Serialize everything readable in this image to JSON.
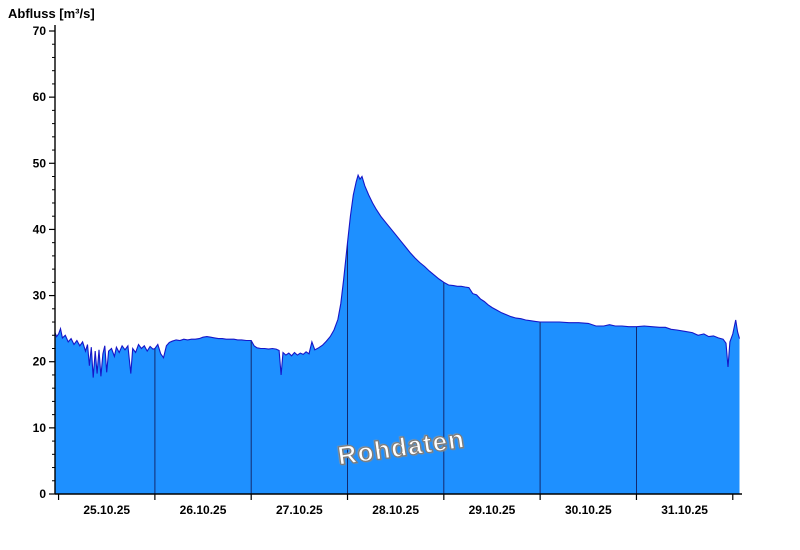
{
  "chart_data": {
    "type": "area",
    "title": "Abfluss [m³/s]",
    "ylabel": "Abfluss [m³/s]",
    "xlabel": "",
    "watermark": "Rohdaten",
    "ylim": [
      0,
      70
    ],
    "y_major_ticks": [
      0,
      10,
      20,
      30,
      40,
      50,
      60,
      70
    ],
    "y_minor_step": 2,
    "x_range_days": [
      -0.037,
      7.075
    ],
    "day_boundaries": [
      0,
      1,
      2,
      3,
      4,
      5,
      6,
      7
    ],
    "gridline_days": [
      1,
      2,
      3,
      4,
      5,
      6
    ],
    "day_labels": [
      "25.10.25",
      "26.10.25",
      "27.10.25",
      "28.10.25",
      "29.10.25",
      "30.10.25",
      "31.10.25"
    ],
    "day_label_centers": [
      0.5,
      1.5,
      2.5,
      3.5,
      4.5,
      5.5,
      6.5
    ],
    "legend_position": "none",
    "grid": "vertical-day-lines-clipped-to-area",
    "colors": {
      "fill": "#1E90FF",
      "line": "#1616C8",
      "grid": "#10104a",
      "axis": "#000000",
      "text": "#000000",
      "watermark_fill": "#ffffff",
      "watermark_outline": "#7d7d7d",
      "background": "#ffffff"
    },
    "series": [
      {
        "name": "Rohdaten",
        "unit": "m³/s",
        "points": [
          [
            -0.037,
            24.4
          ],
          [
            -0.02,
            23.8
          ],
          [
            0,
            24.2
          ],
          [
            0.02,
            25.0
          ],
          [
            0.04,
            23.6
          ],
          [
            0.07,
            24.0
          ],
          [
            0.1,
            23.0
          ],
          [
            0.13,
            23.5
          ],
          [
            0.16,
            22.6
          ],
          [
            0.19,
            23.2
          ],
          [
            0.22,
            22.4
          ],
          [
            0.25,
            23.0
          ],
          [
            0.28,
            21.6
          ],
          [
            0.3,
            22.6
          ],
          [
            0.32,
            19.4
          ],
          [
            0.34,
            22.2
          ],
          [
            0.36,
            17.6
          ],
          [
            0.38,
            21.6
          ],
          [
            0.4,
            18.2
          ],
          [
            0.42,
            21.8
          ],
          [
            0.44,
            17.8
          ],
          [
            0.46,
            21.2
          ],
          [
            0.48,
            22.4
          ],
          [
            0.5,
            18.4
          ],
          [
            0.52,
            21.6
          ],
          [
            0.55,
            22.0
          ],
          [
            0.58,
            20.8
          ],
          [
            0.6,
            22.2
          ],
          [
            0.63,
            21.4
          ],
          [
            0.66,
            22.4
          ],
          [
            0.69,
            21.8
          ],
          [
            0.72,
            22.4
          ],
          [
            0.75,
            18.2
          ],
          [
            0.77,
            22.0
          ],
          [
            0.8,
            21.4
          ],
          [
            0.83,
            22.6
          ],
          [
            0.86,
            22.0
          ],
          [
            0.89,
            22.4
          ],
          [
            0.92,
            21.6
          ],
          [
            0.95,
            22.3
          ],
          [
            0.98,
            21.9
          ],
          [
            1.0,
            22.0
          ],
          [
            1.03,
            22.6
          ],
          [
            1.06,
            21.2
          ],
          [
            1.09,
            20.6
          ],
          [
            1.12,
            22.4
          ],
          [
            1.15,
            22.9
          ],
          [
            1.18,
            23.1
          ],
          [
            1.22,
            23.3
          ],
          [
            1.26,
            23.2
          ],
          [
            1.3,
            23.4
          ],
          [
            1.34,
            23.3
          ],
          [
            1.38,
            23.4
          ],
          [
            1.42,
            23.4
          ],
          [
            1.46,
            23.5
          ],
          [
            1.5,
            23.7
          ],
          [
            1.54,
            23.8
          ],
          [
            1.58,
            23.7
          ],
          [
            1.62,
            23.6
          ],
          [
            1.66,
            23.5
          ],
          [
            1.7,
            23.5
          ],
          [
            1.74,
            23.4
          ],
          [
            1.78,
            23.4
          ],
          [
            1.82,
            23.4
          ],
          [
            1.86,
            23.3
          ],
          [
            1.9,
            23.3
          ],
          [
            1.95,
            23.2
          ],
          [
            2.0,
            23.2
          ],
          [
            2.03,
            22.4
          ],
          [
            2.06,
            22.1
          ],
          [
            2.1,
            22.0
          ],
          [
            2.14,
            22.0
          ],
          [
            2.18,
            21.9
          ],
          [
            2.22,
            22.0
          ],
          [
            2.26,
            21.9
          ],
          [
            2.29,
            21.7
          ],
          [
            2.31,
            18.0
          ],
          [
            2.33,
            21.4
          ],
          [
            2.36,
            21.0
          ],
          [
            2.39,
            21.3
          ],
          [
            2.42,
            20.9
          ],
          [
            2.45,
            21.4
          ],
          [
            2.48,
            21.0
          ],
          [
            2.51,
            21.3
          ],
          [
            2.54,
            21.1
          ],
          [
            2.57,
            21.5
          ],
          [
            2.6,
            21.2
          ],
          [
            2.63,
            23.0
          ],
          [
            2.66,
            21.8
          ],
          [
            2.7,
            22.1
          ],
          [
            2.74,
            22.5
          ],
          [
            2.78,
            23.1
          ],
          [
            2.82,
            23.8
          ],
          [
            2.86,
            24.8
          ],
          [
            2.9,
            26.4
          ],
          [
            2.93,
            28.8
          ],
          [
            2.96,
            32.5
          ],
          [
            3.0,
            38.0
          ],
          [
            3.03,
            42.0
          ],
          [
            3.06,
            45.2
          ],
          [
            3.09,
            47.2
          ],
          [
            3.11,
            48.2
          ],
          [
            3.13,
            47.6
          ],
          [
            3.15,
            48.0
          ],
          [
            3.18,
            46.6
          ],
          [
            3.22,
            45.2
          ],
          [
            3.26,
            44.0
          ],
          [
            3.3,
            43.0
          ],
          [
            3.35,
            41.9
          ],
          [
            3.4,
            41.0
          ],
          [
            3.45,
            40.1
          ],
          [
            3.5,
            39.2
          ],
          [
            3.55,
            38.3
          ],
          [
            3.6,
            37.4
          ],
          [
            3.65,
            36.5
          ],
          [
            3.7,
            35.7
          ],
          [
            3.75,
            35.0
          ],
          [
            3.8,
            34.4
          ],
          [
            3.85,
            33.7
          ],
          [
            3.9,
            33.1
          ],
          [
            3.95,
            32.5
          ],
          [
            4.0,
            32.0
          ],
          [
            4.05,
            31.6
          ],
          [
            4.1,
            31.5
          ],
          [
            4.14,
            31.4
          ],
          [
            4.18,
            31.4
          ],
          [
            4.22,
            31.3
          ],
          [
            4.26,
            31.2
          ],
          [
            4.3,
            30.3
          ],
          [
            4.34,
            30.1
          ],
          [
            4.38,
            29.5
          ],
          [
            4.42,
            29.1
          ],
          [
            4.46,
            28.6
          ],
          [
            4.5,
            28.2
          ],
          [
            4.55,
            27.8
          ],
          [
            4.6,
            27.4
          ],
          [
            4.65,
            27.1
          ],
          [
            4.7,
            26.8
          ],
          [
            4.75,
            26.6
          ],
          [
            4.8,
            26.5
          ],
          [
            4.85,
            26.3
          ],
          [
            4.9,
            26.2
          ],
          [
            4.95,
            26.1
          ],
          [
            5.0,
            26.0
          ],
          [
            5.1,
            26.0
          ],
          [
            5.2,
            26.0
          ],
          [
            5.3,
            25.9
          ],
          [
            5.4,
            25.9
          ],
          [
            5.5,
            25.8
          ],
          [
            5.58,
            25.4
          ],
          [
            5.66,
            25.4
          ],
          [
            5.72,
            25.6
          ],
          [
            5.78,
            25.4
          ],
          [
            5.85,
            25.4
          ],
          [
            5.92,
            25.3
          ],
          [
            6.0,
            25.3
          ],
          [
            6.08,
            25.4
          ],
          [
            6.16,
            25.3
          ],
          [
            6.24,
            25.2
          ],
          [
            6.3,
            25.2
          ],
          [
            6.36,
            24.9
          ],
          [
            6.42,
            24.8
          ],
          [
            6.5,
            24.6
          ],
          [
            6.58,
            24.4
          ],
          [
            6.64,
            24.0
          ],
          [
            6.7,
            24.2
          ],
          [
            6.75,
            23.8
          ],
          [
            6.8,
            23.9
          ],
          [
            6.85,
            23.6
          ],
          [
            6.9,
            23.4
          ],
          [
            6.93,
            22.8
          ],
          [
            6.95,
            19.2
          ],
          [
            6.97,
            23.0
          ],
          [
            7.0,
            24.2
          ],
          [
            7.03,
            26.3
          ],
          [
            7.05,
            24.5
          ],
          [
            7.07,
            23.5
          ]
        ]
      }
    ]
  }
}
